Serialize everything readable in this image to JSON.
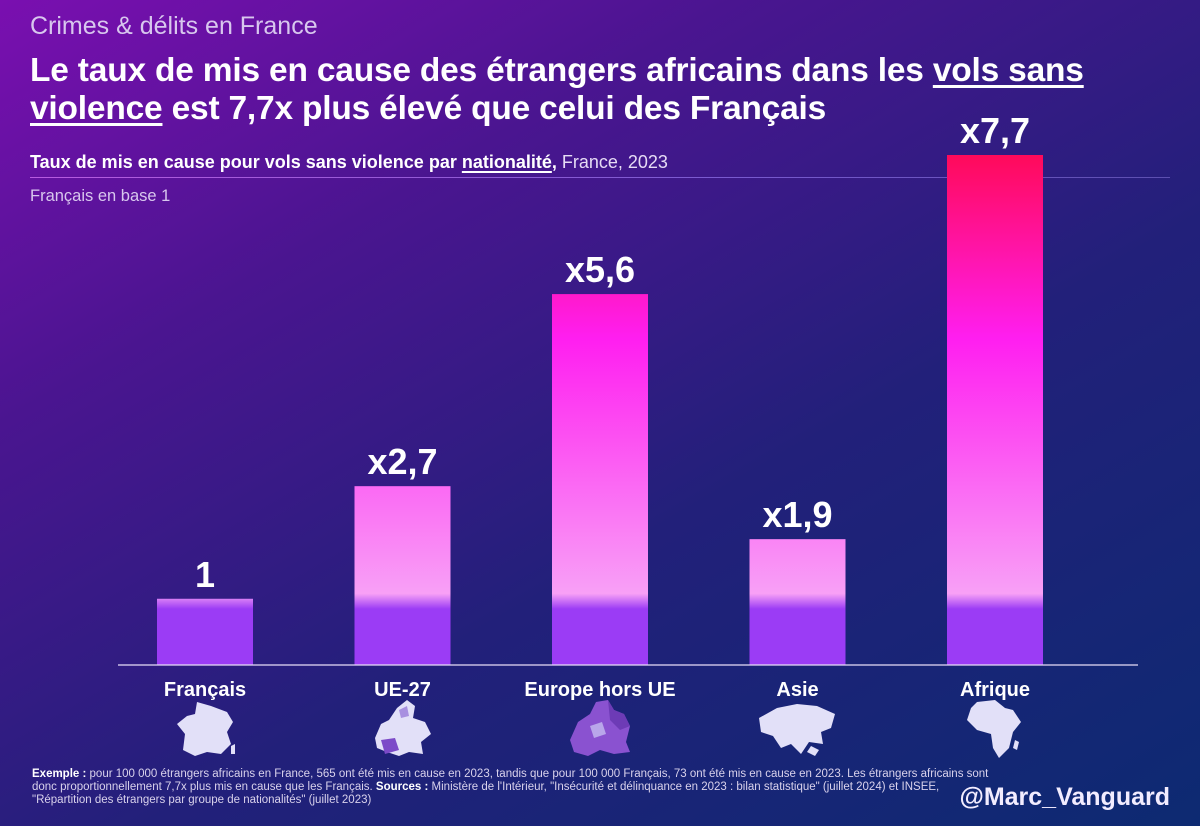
{
  "header": {
    "kicker": "Crimes & délits en France",
    "title_part1": "Le taux de mis en cause des étrangers africains dans les ",
    "title_underlined1": "vols sans",
    "title_underlined2": "violence",
    "title_part2": " est 7,7x plus élevé que celui des Français",
    "subtitle_part1": "Taux de mis en cause pour vols sans violence par ",
    "subtitle_underlined": "nationalité",
    "subtitle_comma": ",",
    "subtitle_part2": " France, 2023",
    "base_note": "Français en base 1"
  },
  "chart_data": {
    "type": "bar",
    "title": "Taux de mis en cause pour vols sans violence par nationalité, France, 2023",
    "ylabel": "Français en base 1",
    "categories": [
      "Français",
      "UE-27",
      "Europe hors UE",
      "Asie",
      "Afrique"
    ],
    "values": [
      1,
      2.7,
      5.6,
      1.9,
      7.7
    ],
    "labels": [
      "1",
      "x2,7",
      "x5,6",
      "x1,9",
      "x7,7"
    ],
    "ylim": [
      0,
      7.7
    ],
    "grid": false,
    "colors": {
      "bottom": "#9b3cf5",
      "mid": "#f06ef0",
      "upper": "#ff1ef0",
      "top": "#ff0a5a"
    }
  },
  "maps": [
    {
      "name": "france-map-icon",
      "highlight": false
    },
    {
      "name": "eu27-map-icon",
      "highlight": true
    },
    {
      "name": "europe-non-eu-map-icon",
      "highlight": true
    },
    {
      "name": "asia-map-icon",
      "highlight": false
    },
    {
      "name": "africa-map-icon",
      "highlight": false
    }
  ],
  "footnote": {
    "example_label": "Exemple :",
    "example_text": " pour 100 000 étrangers africains en France, 565 ont été mis en cause en 2023, tandis que pour 100 000 Français, 73 ont été mis en cause en 2023. Les étrangers africains sont donc proportionnellement 7,7x plus mis en cause que les Français. ",
    "sources_label": "Sources :",
    "sources_text": " Ministère de l'Intérieur, \"Insécurité et délinquance en 2023 : bilan statistique\" (juillet 2024) et INSEE, \"Répartition des étrangers par groupe de nationalités\" (juillet 2023)"
  },
  "handle": "@Marc_Vanguard"
}
